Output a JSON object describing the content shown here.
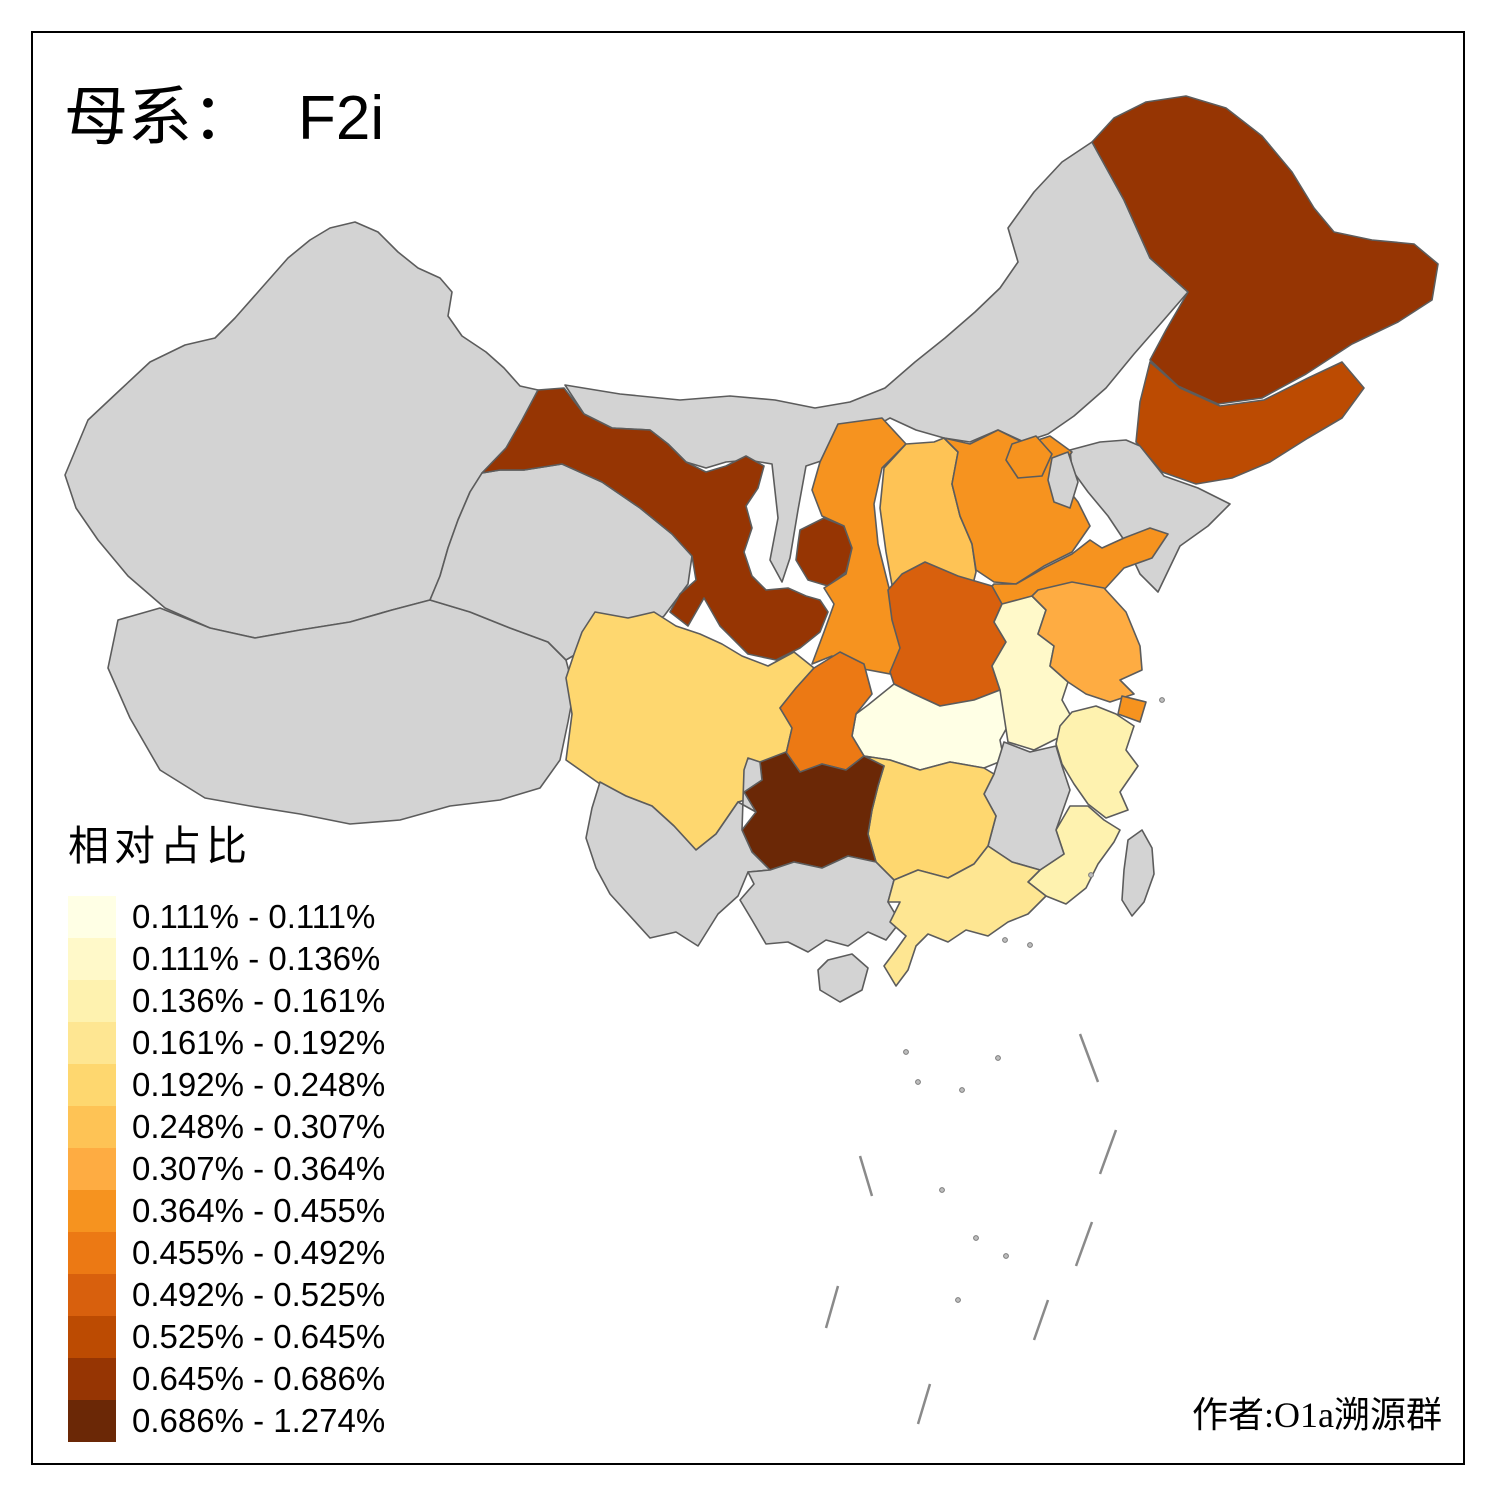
{
  "title": {
    "prefix": "母系：",
    "haplogroup": "F2i"
  },
  "legend": {
    "title": "相对占比",
    "items": [
      {
        "label": "0.111% - 0.111%",
        "color": "#FFFFE5"
      },
      {
        "label": "0.111% - 0.136%",
        "color": "#FFF9C9"
      },
      {
        "label": "0.136% - 0.161%",
        "color": "#FEF2AF"
      },
      {
        "label": "0.161% - 0.192%",
        "color": "#FEE692"
      },
      {
        "label": "0.192% - 0.248%",
        "color": "#FED76F"
      },
      {
        "label": "0.248% - 0.307%",
        "color": "#FEC355"
      },
      {
        "label": "0.307% - 0.364%",
        "color": "#FEAC42"
      },
      {
        "label": "0.364% - 0.455%",
        "color": "#F6931F"
      },
      {
        "label": "0.455% - 0.492%",
        "color": "#EC7914"
      },
      {
        "label": "0.492% - 0.525%",
        "color": "#D8600D"
      },
      {
        "label": "0.525% - 0.645%",
        "color": "#BC4B02"
      },
      {
        "label": "0.645% - 0.686%",
        "color": "#963503"
      },
      {
        "label": "0.686% - 1.274%",
        "color": "#6B2806"
      }
    ]
  },
  "attribution": "作者:O1a溯源群",
  "map": {
    "no_data_color": "#D3D3D3",
    "border_color": "#5C5C5C",
    "sea_color": "#FFFFFF",
    "provinces": [
      {
        "id": "xinjiang",
        "class": null
      },
      {
        "id": "xizang",
        "class": null
      },
      {
        "id": "qinghai",
        "class": null
      },
      {
        "id": "neimenggu",
        "class": null
      },
      {
        "id": "gansu",
        "class": 12
      },
      {
        "id": "ningxia",
        "class": 12
      },
      {
        "id": "heilongjiang",
        "class": 12
      },
      {
        "id": "jilin",
        "class": 11
      },
      {
        "id": "liaoning",
        "class": null
      },
      {
        "id": "shaanxi",
        "class": 8
      },
      {
        "id": "shanxi",
        "class": 6
      },
      {
        "id": "hebei",
        "class": 8
      },
      {
        "id": "beijing",
        "class": 8
      },
      {
        "id": "tianjin",
        "class": null
      },
      {
        "id": "shandong",
        "class": 8
      },
      {
        "id": "henan",
        "class": 10
      },
      {
        "id": "hubei",
        "class": 1
      },
      {
        "id": "anhui",
        "class": 2
      },
      {
        "id": "jiangsu",
        "class": 7
      },
      {
        "id": "shanghai",
        "class": 8
      },
      {
        "id": "zhejiang",
        "class": 3
      },
      {
        "id": "fujian",
        "class": 3
      },
      {
        "id": "jiangxi",
        "class": null
      },
      {
        "id": "hunan",
        "class": 5
      },
      {
        "id": "sichuan",
        "class": 5
      },
      {
        "id": "chongqing",
        "class": 9
      },
      {
        "id": "guizhou",
        "class": 13
      },
      {
        "id": "yunnan",
        "class": null
      },
      {
        "id": "guangxi",
        "class": null
      },
      {
        "id": "guangdong",
        "class": 4
      },
      {
        "id": "hainan",
        "class": null
      },
      {
        "id": "taiwan",
        "class": null
      }
    ]
  }
}
